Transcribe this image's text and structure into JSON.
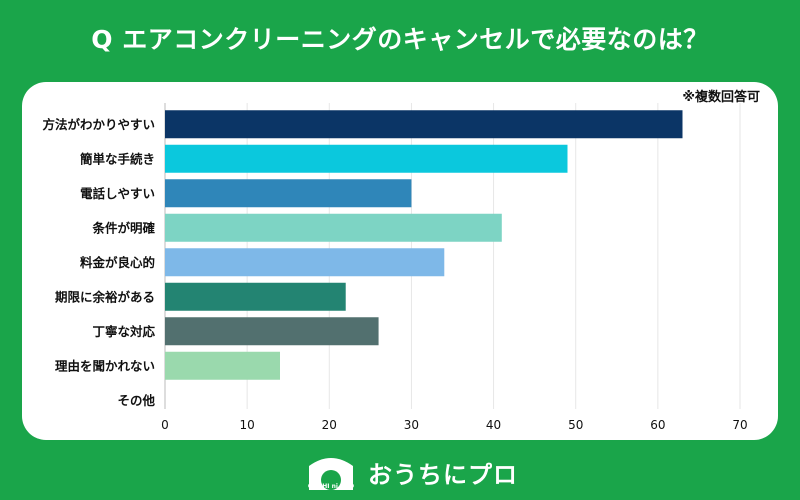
{
  "header": {
    "title": "Q エアコンクリーニングのキャンセルで必要なのは？"
  },
  "chart_note": "※複数回答可",
  "chart_data": {
    "type": "bar",
    "orientation": "horizontal",
    "title": "Q エアコンクリーニングのキャンセルで必要なのは？",
    "categories": [
      "方法がわかりやすい",
      "簡単な手続き",
      "電話しやすい",
      "条件が明確",
      "料金が良心的",
      "期限に余裕がある",
      "丁寧な対応",
      "理由を聞かれない",
      "その他"
    ],
    "values": [
      63,
      49,
      30,
      41,
      34,
      22,
      26,
      14,
      0
    ],
    "colors": [
      "#0b3566",
      "#0bc8dd",
      "#2f86b9",
      "#7dd4c4",
      "#7eb8e8",
      "#238472",
      "#52706f",
      "#9ad9ad",
      "#cccccc"
    ],
    "xlim": [
      0,
      70
    ],
    "xticks": [
      0,
      10,
      20,
      30,
      40,
      50,
      60,
      70
    ],
    "xlabel": "",
    "ylabel": "",
    "grid": true
  },
  "footer": {
    "brand_name": "おうちにプロ",
    "logo_text": "OUCHI ni PRO"
  }
}
